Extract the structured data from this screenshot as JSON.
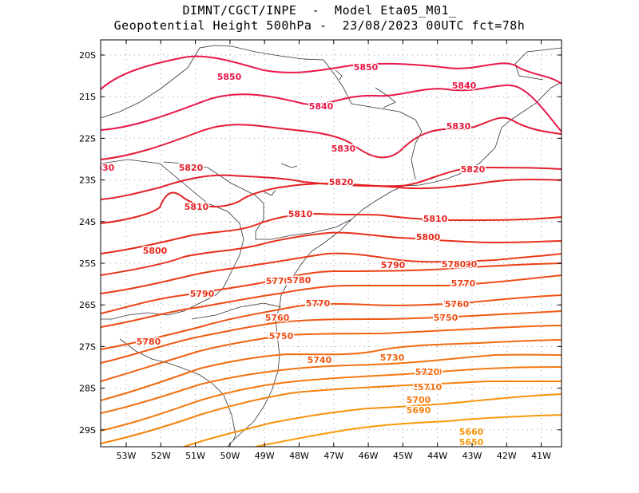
{
  "header": {
    "line1": "DIMNT/CGCT/INPE  -  Model Eta05_M01_",
    "line2": "Geopotential Height 500hPa -  23/08/2023 00UTC fct=78h"
  },
  "axes": {
    "lon_labels": [
      "53W",
      "52W",
      "51W",
      "50W",
      "49W",
      "48W",
      "47W",
      "46W",
      "45W",
      "44W",
      "43W",
      "42W",
      "41W"
    ],
    "lat_labels": [
      "20S",
      "21S",
      "22S",
      "23S",
      "24S",
      "25S",
      "26S",
      "27S",
      "28S",
      "29S"
    ]
  },
  "contours": [
    {
      "value": "5850",
      "color": "#e8174a"
    },
    {
      "value": "5840",
      "color": "#e8174a"
    },
    {
      "value": "5830",
      "color": "#e41a3a"
    },
    {
      "value": "5820",
      "color": "#e4202d"
    },
    {
      "value": "5810",
      "color": "#e42222"
    },
    {
      "value": "5800",
      "color": "#e62a1a"
    },
    {
      "value": "5790",
      "color": "#e8301a"
    },
    {
      "value": "5780",
      "color": "#ea3a18"
    },
    {
      "value": "5770",
      "color": "#ec4216"
    },
    {
      "value": "5760",
      "color": "#ee4a16"
    },
    {
      "value": "5750",
      "color": "#ef5214"
    },
    {
      "value": "5740",
      "color": "#f05a14"
    },
    {
      "value": "5730",
      "color": "#f06212"
    },
    {
      "value": "5720",
      "color": "#f26a12"
    },
    {
      "value": "5710",
      "color": "#f27212"
    },
    {
      "value": "5700",
      "color": "#f47a10"
    },
    {
      "value": "5690",
      "color": "#f4820e"
    },
    {
      "value": "5660",
      "color": "#f8920a"
    },
    {
      "value": "5650",
      "color": "#f89a0a"
    }
  ],
  "extra_labels": [
    {
      "value": "5840",
      "color": "#e8174a"
    },
    {
      "value": "5830",
      "color": "#e41a3a"
    },
    {
      "value": "5850",
      "color": "#e8174a"
    },
    {
      "value": "5820",
      "color": "#e4202d"
    },
    {
      "value": "5810",
      "color": "#e42222"
    },
    {
      "value": "5790",
      "color": "#e8301a"
    },
    {
      "value": "5780",
      "color": "#ea3a18"
    },
    {
      "value": "5770",
      "color": "#ec4216"
    },
    {
      "value": "5760",
      "color": "#ee4a16"
    },
    {
      "value": "5750",
      "color": "#ef5214"
    },
    {
      "value": "5770",
      "color": "#ec4216"
    },
    {
      "value": "5810",
      "color": "#e42222"
    },
    {
      "value": "5800",
      "color": "#e62a1a"
    },
    {
      "value": "5790",
      "color": "#e8301a"
    },
    {
      "value": "5820",
      "color": "#e4202d"
    },
    {
      "value": "5830",
      "color": "#e41a3a"
    },
    {
      "value": "5840",
      "color": "#e8174a"
    },
    {
      "value": "5780",
      "color": "#ea3a18"
    },
    {
      "value": "5760",
      "color": "#ee4a16"
    },
    {
      "value": "5720",
      "color": "#f26a12"
    },
    {
      "value": "5710",
      "color": "#f27212"
    }
  ]
}
